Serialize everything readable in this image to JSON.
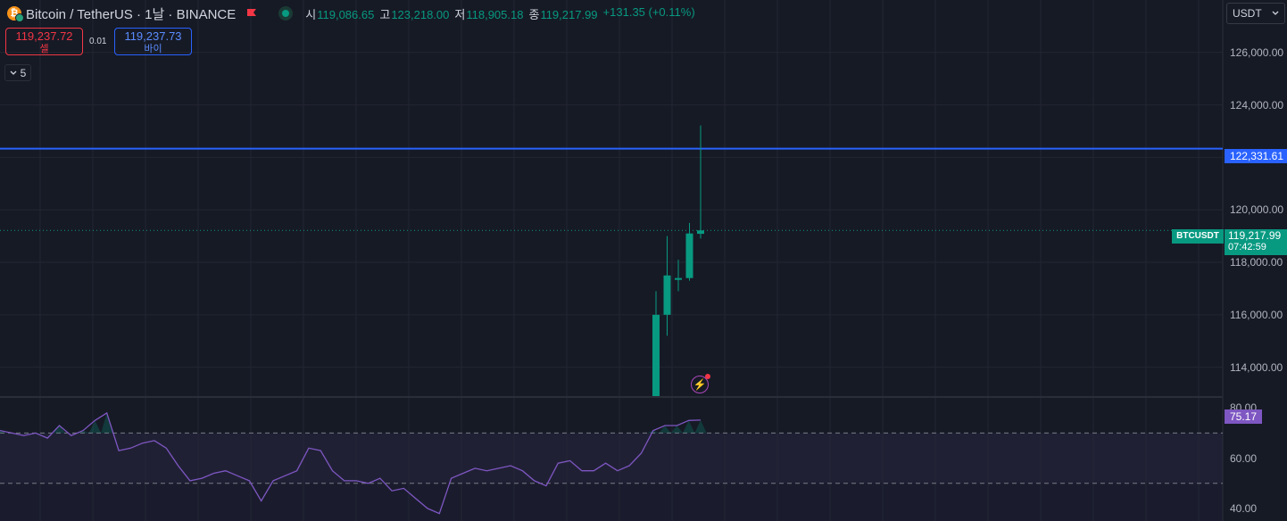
{
  "header": {
    "symbol_title": "Bitcoin / TetherUS · 1날 · BINANCE",
    "ohlc": [
      {
        "label": "시",
        "value": "119,086.65"
      },
      {
        "label": "고",
        "value": "123,218.00"
      },
      {
        "label": "저",
        "value": "118,905.18"
      },
      {
        "label": "종",
        "value": "119,217.99"
      },
      {
        "label": "",
        "value": "+131.35 (+0.11%)"
      }
    ]
  },
  "trade": {
    "sell_price": "119,237.72",
    "sell_label": "셀",
    "spread": "0.01",
    "buy_price": "119,237.73",
    "buy_label": "바이"
  },
  "collapse": {
    "count": "5"
  },
  "currency": {
    "selected": "USDT"
  },
  "price_axis": {
    "ticks": [
      {
        "value": 126000,
        "label": "126,000.00"
      },
      {
        "value": 124000,
        "label": "124,000.00"
      },
      {
        "value": 122000,
        "label": "122,000.00"
      },
      {
        "value": 120000,
        "label": "120,000.00"
      },
      {
        "value": 118000,
        "label": "118,000.00"
      },
      {
        "value": 116000,
        "label": "116,000.00"
      },
      {
        "value": 114000,
        "label": "114,000.00"
      }
    ],
    "alert_line_label": "122,331.61",
    "last_price_label": "119,217.99",
    "countdown": "07:42:59",
    "symbol_tag": "BTCUSDT"
  },
  "rsi_axis": {
    "ticks": [
      {
        "value": 80,
        "label": "80.00"
      },
      {
        "value": 60,
        "label": "60.00"
      },
      {
        "value": 40,
        "label": "40.00"
      }
    ],
    "current_label": "75.17"
  },
  "colors": {
    "up": "#089981",
    "down": "#f23645",
    "alert_line": "#2962ff",
    "rsi": "#7e57c2",
    "rsi_band": "rgba(126,87,194,0.10)"
  },
  "chart_data": {
    "type": "candlestick",
    "price_range": [
      112900,
      128000
    ],
    "alert_level": 122331.61,
    "last_price": 119217.99,
    "candles": [
      {
        "open": 112900,
        "high": 116900,
        "low": 112900,
        "close": 116000
      },
      {
        "open": 116000,
        "high": 119000,
        "low": 115200,
        "close": 117500
      },
      {
        "open": 117400,
        "high": 118100,
        "low": 116900,
        "close": 117400
      },
      {
        "open": 117400,
        "high": 119500,
        "low": 117300,
        "close": 119100
      },
      {
        "open": 119086.65,
        "high": 123218.0,
        "low": 118905.18,
        "close": 119217.99
      }
    ],
    "rsi": {
      "range": [
        35,
        84
      ],
      "overbought": 70,
      "oversold": 50,
      "values": [
        71,
        70,
        69,
        70,
        68,
        73,
        69,
        71,
        75,
        78,
        63,
        64,
        66,
        67,
        64,
        57,
        51,
        52,
        54,
        55,
        53,
        51,
        43,
        51,
        53,
        55,
        64,
        63,
        55,
        51,
        51,
        50,
        52,
        47,
        48,
        44,
        40,
        38,
        52,
        54,
        56,
        55,
        56,
        57,
        55,
        51,
        49,
        58,
        59,
        55,
        55,
        58,
        55,
        57,
        62,
        71,
        73,
        73,
        75,
        75.17
      ]
    }
  }
}
